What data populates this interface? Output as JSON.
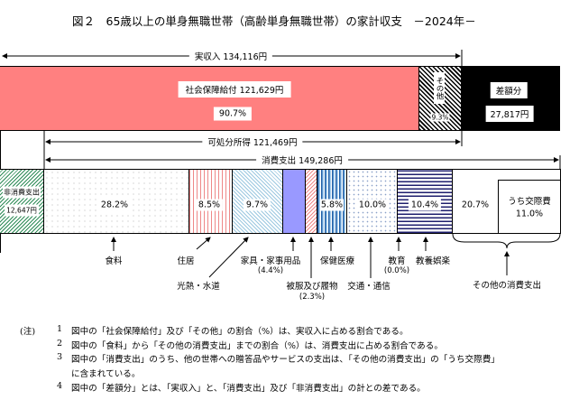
{
  "title": "図２　65歳以上の単身無職世帯（高齢単身無職世帯）の家計収支　－2024年－",
  "income": {
    "total_label": "実収入 134,116円",
    "social_security_label": "社会保障給付 121,629円",
    "social_security_pct": "90.7%",
    "other_label": "その他",
    "other_pct": "9.3%",
    "deficit_label": "差額分",
    "deficit_value": "27,817円"
  },
  "disposable_label": "可処分所得 121,469円",
  "consumption_label": "消費支出 149,286円",
  "non_consumption": {
    "label": "非消費支出",
    "value": "12,647円"
  },
  "categories": [
    {
      "name": "食料",
      "pct": "28.2%"
    },
    {
      "name": "住居",
      "pct": "8.5%"
    },
    {
      "name": "光熱・水道",
      "pct": "9.7%"
    },
    {
      "name": "家具・家事用品",
      "pct": "(4.4%)"
    },
    {
      "name": "被服及び履物",
      "pct": "(2.3%)"
    },
    {
      "name": "保健医療",
      "pct": "5.8%"
    },
    {
      "name": "交通・通信",
      "pct": "10.0%"
    },
    {
      "name": "教育",
      "pct": "(0.0%)"
    },
    {
      "name": "教養娯楽",
      "pct": "10.4%"
    },
    {
      "name": "その他の消費支出",
      "pct": "20.7%"
    }
  ],
  "social_expense": {
    "label": "うち交際費",
    "pct": "11.0%"
  },
  "colors": {
    "social_security": "#ff8080",
    "deficit": "#000000",
    "furniture": "#9999ff",
    "culture": "#1f1f6e"
  },
  "notes": {
    "prefix": "(注)",
    "items": [
      {
        "num": "1",
        "text": "図中の「社会保障給付」及び「その他」の割合（%）は、実収入に占める割合である。"
      },
      {
        "num": "2",
        "text": "図中の「食料」から「その他の消費支出」までの割合（%）は、消費支出に占める割合である。"
      },
      {
        "num": "3",
        "text": "図中の「消費支出」のうち、他の世帯への贈答品やサービスの支出は、「その他の消費支出」の「うち交際費」"
      },
      {
        "num": "",
        "text": "に含まれている。"
      },
      {
        "num": "4",
        "text": "図中の「差額分」とは、「実収入」と、「消費支出」及び「非消費支出」の計との差である。"
      }
    ]
  }
}
